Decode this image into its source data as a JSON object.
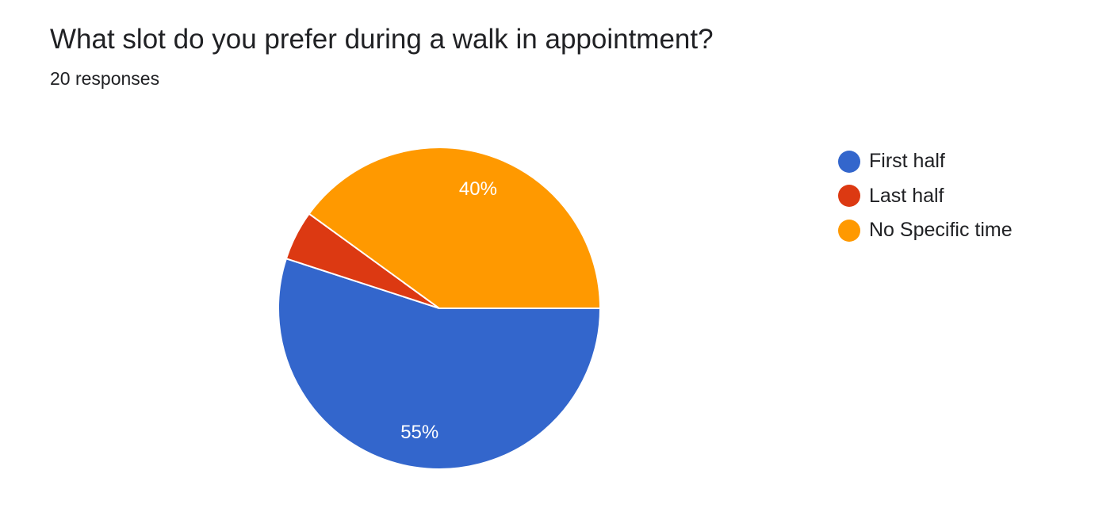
{
  "question": {
    "title": "What slot do you prefer during a walk in appointment?",
    "responses": "20 responses"
  },
  "chart_data": {
    "type": "pie",
    "title": "What slot do you prefer during a walk in appointment?",
    "subtitle": "20 responses",
    "legend_position": "right",
    "slices": [
      {
        "label": "First half",
        "percent": 55,
        "data_label": "55%",
        "color": "#3366cc"
      },
      {
        "label": "Last half",
        "percent": 5,
        "data_label": "",
        "color": "#dc3912"
      },
      {
        "label": "No Specific time",
        "percent": 40,
        "data_label": "40%",
        "color": "#ff9900"
      }
    ]
  }
}
